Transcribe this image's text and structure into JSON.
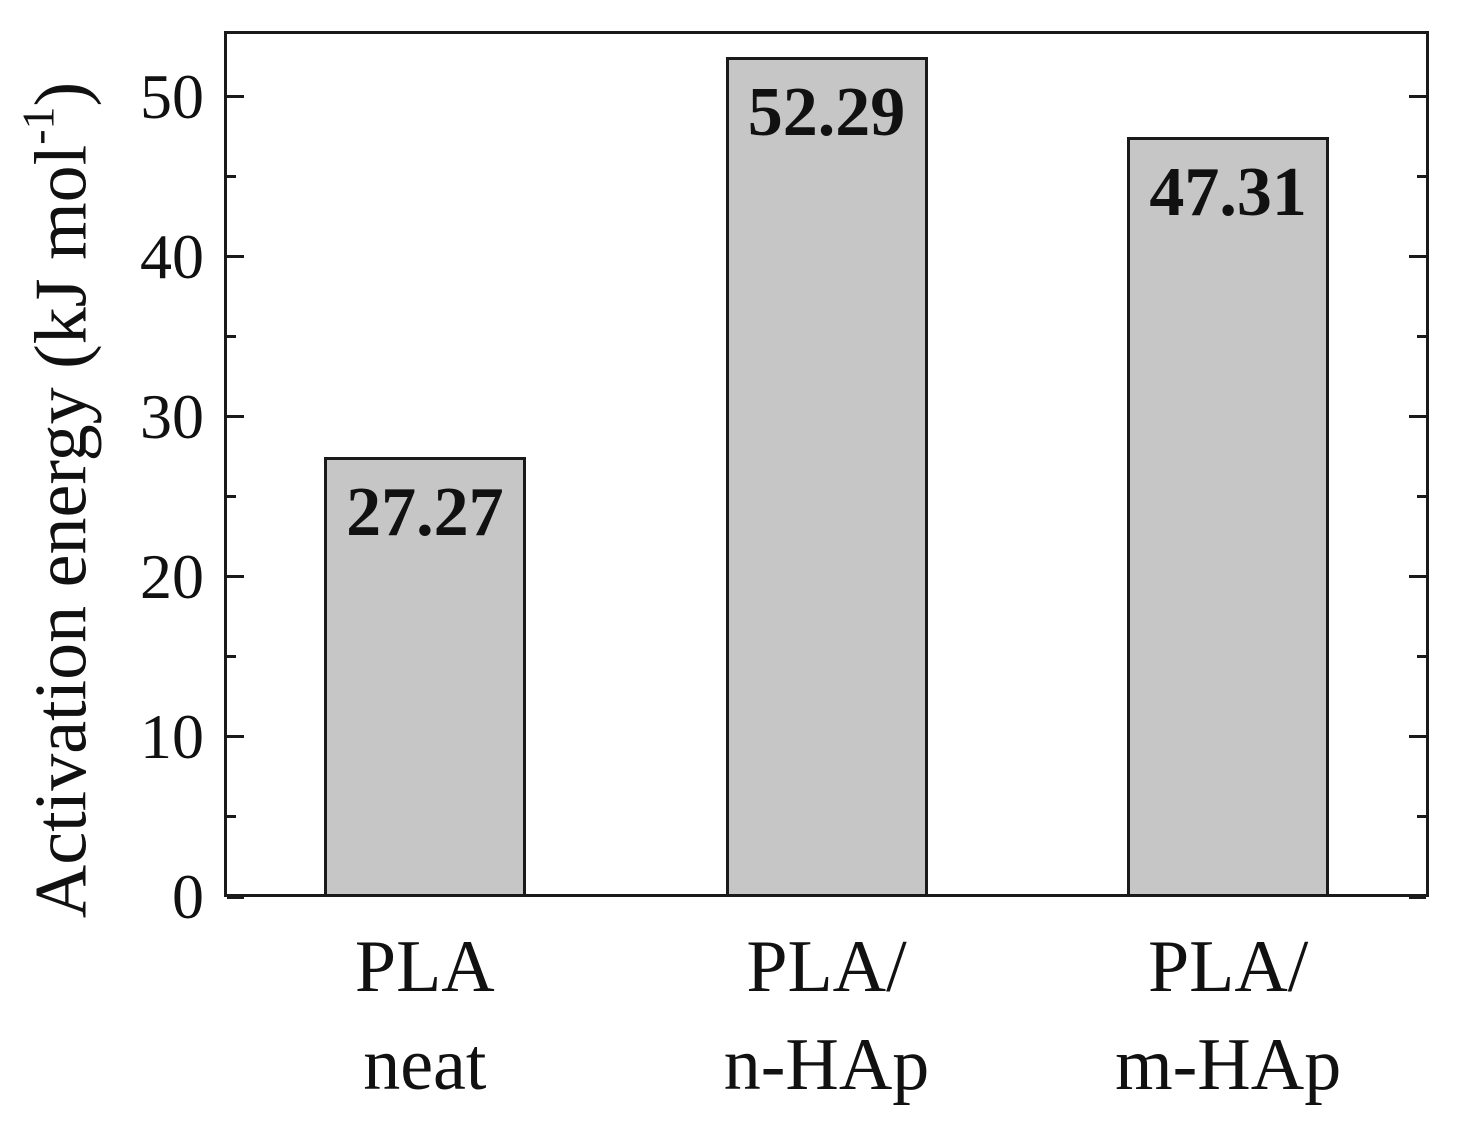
{
  "chart_data": {
    "type": "bar",
    "title": "",
    "xlabel": "",
    "ylabel_parts": {
      "main": "Activation energy (kJ mol",
      "sup": "-1",
      "suffix": ")"
    },
    "categories": [
      {
        "line1": "PLA",
        "line2": "neat"
      },
      {
        "line1": "PLA/",
        "line2": "n-HAp"
      },
      {
        "line1": "PLA/",
        "line2": "m-HAp"
      }
    ],
    "values": [
      27.27,
      52.29,
      47.31
    ],
    "bar_value_labels": [
      "27.27",
      "52.29",
      "47.31"
    ],
    "ylim": [
      0,
      54.1
    ],
    "yticks": [
      0,
      10,
      20,
      30,
      40,
      50
    ],
    "yticks_minor": [
      5,
      15,
      25,
      35,
      45
    ],
    "grid": false,
    "legend_position": "none",
    "bar_fill_color": "#c6c6c7",
    "bar_edge_color": "#1a1a1a",
    "axis_color": "#1a1a1a"
  }
}
